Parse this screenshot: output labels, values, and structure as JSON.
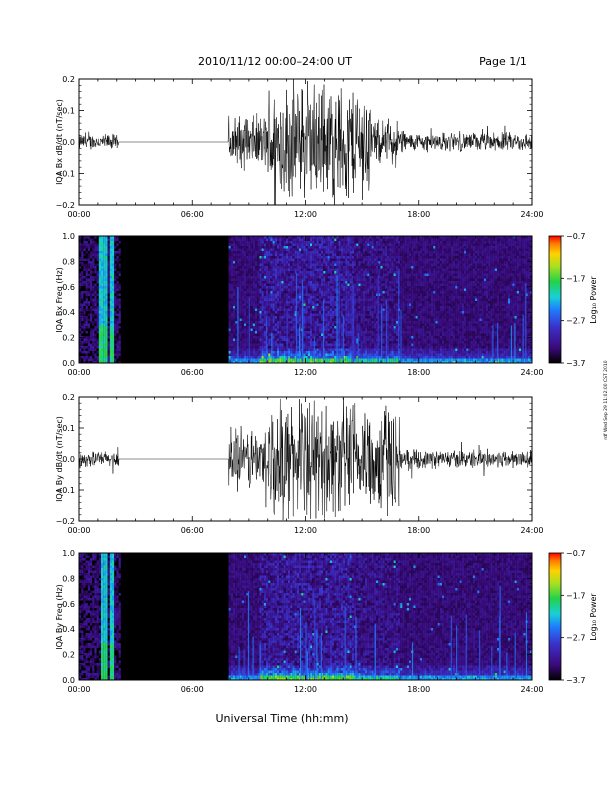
{
  "header": {
    "title": "2010/11/12   00:00–24:00 UT",
    "page": "Page 1/1"
  },
  "footer_label": "Universal Time (hh:mm)",
  "side_note": "rdf Wed Sep 29 11:02:00 CST 2010",
  "time_ticks": [
    "00:00",
    "06:00",
    "12:00",
    "18:00",
    "24:00"
  ],
  "colors": {
    "trace": "#000000",
    "background_spec": "#000000",
    "spectrum_low": "#2a0a5a",
    "spectrum_mid": "#1e66ff",
    "spectrum_high": "#2fd65a"
  },
  "chart_data": [
    {
      "type": "line",
      "ylabel": "IQA Bx dB/dt (nT/sec)",
      "xlim": [
        0,
        24
      ],
      "ylim": [
        -0.2,
        0.2
      ],
      "yticks": [
        "0.2",
        "0.1",
        "0.0",
        "−0.1",
        "−0.2"
      ],
      "segments": [
        {
          "x": [
            0.0,
            2.1
          ],
          "amplitude": 0.03,
          "style": "noise"
        },
        {
          "x": [
            2.1,
            7.9
          ],
          "amplitude": 0.0,
          "style": "flat"
        },
        {
          "x": [
            7.9,
            10.0
          ],
          "amplitude": 0.1,
          "style": "noise"
        },
        {
          "x": [
            10.0,
            15.5
          ],
          "amplitude": 0.22,
          "style": "noise"
        },
        {
          "x": [
            15.5,
            17.2
          ],
          "amplitude": 0.08,
          "style": "noise"
        },
        {
          "x": [
            17.2,
            24.0
          ],
          "amplitude": 0.035,
          "style": "noise"
        }
      ]
    },
    {
      "type": "heatmap",
      "ylabel": "IQA Bx Freq (Hz)",
      "xlim": [
        0,
        24
      ],
      "ylim": [
        0,
        1.0
      ],
      "yticks": [
        "1.0",
        "0.8",
        "0.6",
        "0.4",
        "0.2",
        "0.0"
      ],
      "colorbar": {
        "label": "Log₁₀ Power",
        "ticks": [
          "−0.7",
          "−1.7",
          "−2.7",
          "−3.7"
        ],
        "range": [
          -3.7,
          -0.7
        ]
      },
      "active_band_hours": [
        [
          1.0,
          1.4
        ],
        [
          1.6,
          1.8
        ]
      ],
      "no_data_hours": [
        2.2,
        7.9
      ]
    },
    {
      "type": "line",
      "ylabel": "IQA By dB/dt (nT/sec)",
      "xlim": [
        0,
        24
      ],
      "ylim": [
        -0.2,
        0.2
      ],
      "yticks": [
        "0.2",
        "0.1",
        "0.0",
        "−0.1",
        "−0.2"
      ],
      "segments": [
        {
          "x": [
            0.0,
            2.1
          ],
          "amplitude": 0.03,
          "style": "noise"
        },
        {
          "x": [
            2.1,
            7.9
          ],
          "amplitude": 0.0,
          "style": "flat"
        },
        {
          "x": [
            7.9,
            10.0
          ],
          "amplitude": 0.12,
          "style": "noise"
        },
        {
          "x": [
            10.0,
            17.0
          ],
          "amplitude": 0.22,
          "style": "noise"
        },
        {
          "x": [
            17.0,
            24.0
          ],
          "amplitude": 0.035,
          "style": "noise"
        }
      ]
    },
    {
      "type": "heatmap",
      "ylabel": "IQA By Freq (Hz)",
      "xlim": [
        0,
        24
      ],
      "ylim": [
        0,
        1.0
      ],
      "yticks": [
        "1.0",
        "0.8",
        "0.6",
        "0.4",
        "0.2",
        "0.0"
      ],
      "colorbar": {
        "label": "Log₁₀ Power",
        "ticks": [
          "−0.7",
          "−1.7",
          "−2.7",
          "−3.7"
        ],
        "range": [
          -3.7,
          -0.7
        ]
      },
      "active_band_hours": [
        [
          1.1,
          1.4
        ],
        [
          1.6,
          1.8
        ]
      ],
      "no_data_hours": [
        2.2,
        7.9
      ]
    }
  ]
}
